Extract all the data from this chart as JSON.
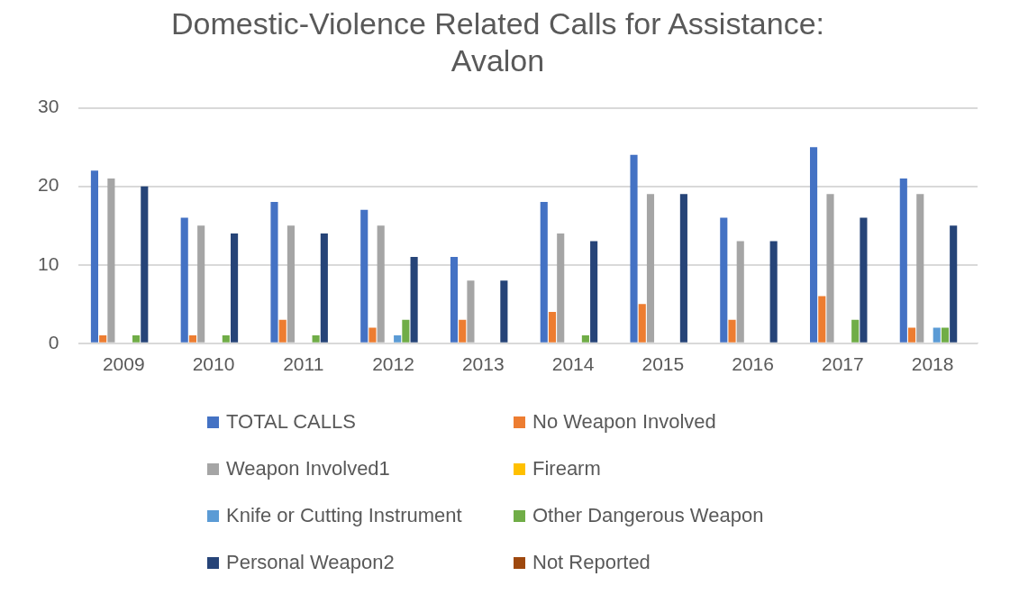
{
  "chart_data": {
    "type": "bar",
    "title": "Domestic-Violence Related Calls for Assistance: Avalon",
    "categories": [
      "2009",
      "2010",
      "2011",
      "2012",
      "2013",
      "2014",
      "2015",
      "2016",
      "2017",
      "2018"
    ],
    "series": [
      {
        "name": "TOTAL CALLS",
        "color": "#4472c4",
        "values": [
          22,
          16,
          18,
          17,
          11,
          18,
          24,
          16,
          25,
          21
        ]
      },
      {
        "name": "No Weapon Involved",
        "color": "#ed7d31",
        "values": [
          1,
          1,
          3,
          2,
          3,
          4,
          5,
          3,
          6,
          2
        ]
      },
      {
        "name": "Weapon Involved1",
        "color": "#a5a5a5",
        "values": [
          21,
          15,
          15,
          15,
          8,
          14,
          19,
          13,
          19,
          19
        ]
      },
      {
        "name": "Firearm",
        "color": "#ffc000",
        "values": [
          0,
          0,
          0,
          0,
          0,
          0,
          0,
          0,
          0,
          0
        ]
      },
      {
        "name": "Knife or Cutting Instrument",
        "color": "#5b9bd5",
        "values": [
          0,
          0,
          0,
          1,
          0,
          0,
          0,
          0,
          0,
          2
        ]
      },
      {
        "name": "Other Dangerous Weapon",
        "color": "#70ad47",
        "values": [
          1,
          1,
          1,
          3,
          0,
          1,
          0,
          0,
          3,
          2
        ]
      },
      {
        "name": "Personal Weapon2",
        "color": "#264478",
        "values": [
          20,
          14,
          14,
          11,
          8,
          13,
          19,
          13,
          16,
          15
        ]
      },
      {
        "name": "Not Reported",
        "color": "#9e480e",
        "values": [
          0,
          0,
          0,
          0,
          0,
          0,
          0,
          0,
          0,
          0
        ]
      }
    ],
    "ylim": [
      0,
      30
    ],
    "yticks": [
      0,
      10,
      20,
      30
    ],
    "grid": "y",
    "legend": "bottom"
  }
}
